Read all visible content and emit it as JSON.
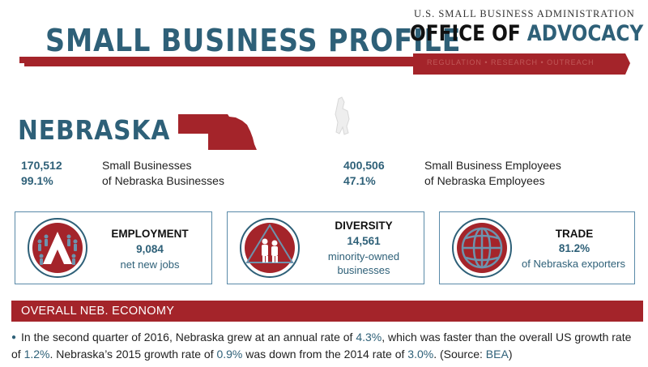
{
  "header": {
    "title": "SMALL BUSINESS PROFILE",
    "org_line": "U.S. SMALL BUSINESS ADMINISTRATION",
    "office_prefix": "OFFICE OF",
    "office_accent": "ADVOCACY",
    "tagline": "REGULATION  •  RESEARCH  •  OUTREACH"
  },
  "state": {
    "name": "NEBRASKA"
  },
  "stats": {
    "small_businesses": {
      "value": "170,512",
      "label": "Small Businesses"
    },
    "share_businesses": {
      "value": "99.1%",
      "label": "of Nebraska Businesses"
    },
    "employees": {
      "value": "400,506",
      "label": "Small Business Employees"
    },
    "share_employees": {
      "value": "47.1%",
      "label": "of Nebraska Employees"
    }
  },
  "cards": [
    {
      "title": "EMPLOYMENT",
      "value": "9,084",
      "sub": "net new jobs",
      "icon": "employment-icon"
    },
    {
      "title": "DIVERSITY",
      "value": "14,561",
      "sub": "minority-owned businesses",
      "icon": "diversity-icon"
    },
    {
      "title": "TRADE",
      "value": "81.2%",
      "sub": "of Nebraska exporters",
      "icon": "globe-icon"
    }
  ],
  "economy": {
    "heading": "OVERALL NEB. ECONOMY",
    "t1": "In the second quarter of 2016, Nebraska grew at an annual rate of ",
    "v1": "4.3%",
    "t2": ", which was faster than the overall US growth rate of ",
    "v2": "1.2%",
    "t3": ". Nebraska’s 2015 growth rate of ",
    "v3": "0.9%",
    "t4": " was down from the 2014 rate of ",
    "v4": "3.0%",
    "t5": ". (Source: ",
    "source": "BEA",
    "t6": ")"
  },
  "colors": {
    "brand_blue": "#2e6078",
    "brand_red": "#a4242a"
  }
}
